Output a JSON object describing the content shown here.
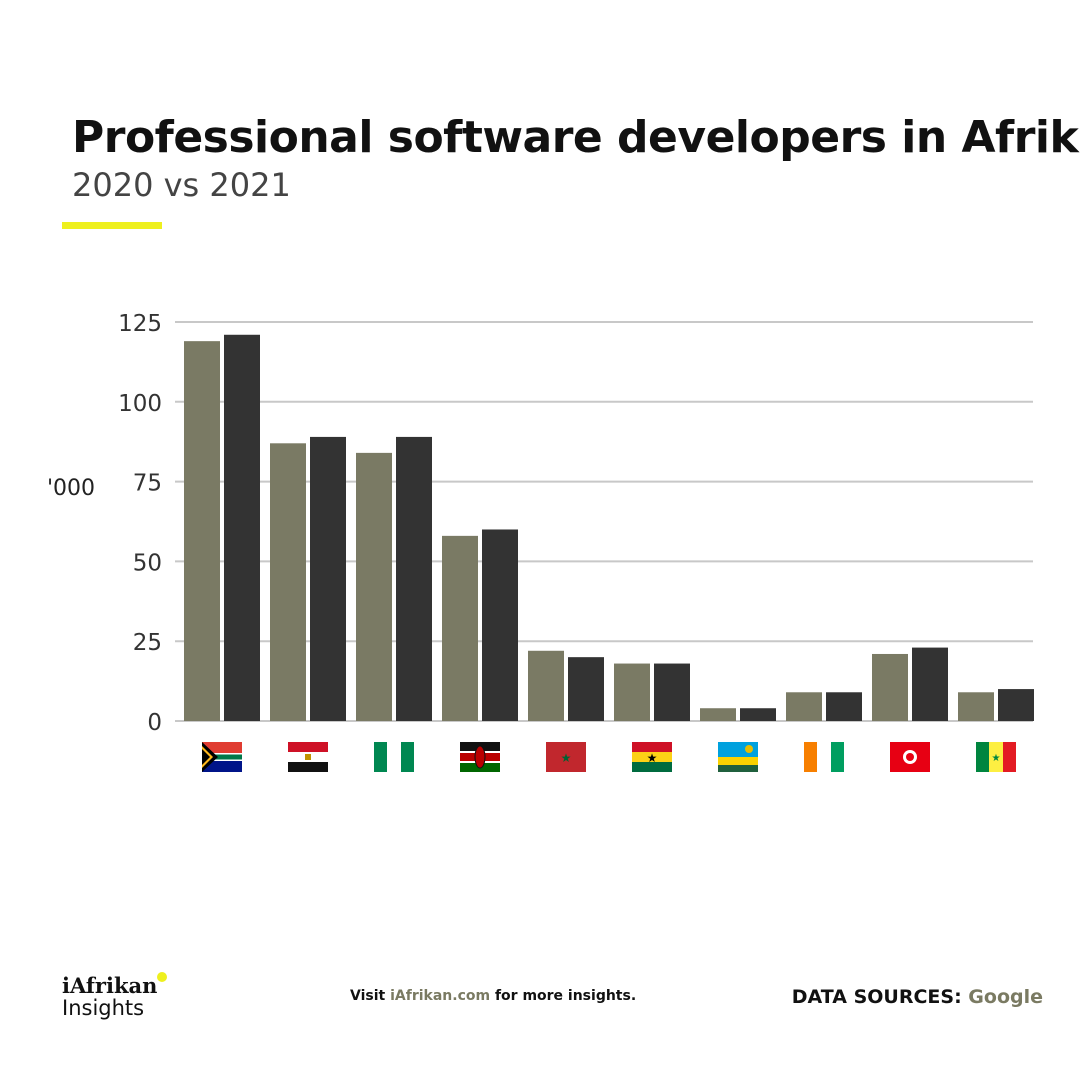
{
  "header": {
    "title": "Professional software developers in Afrika",
    "subtitle": "2020 vs 2021"
  },
  "footer": {
    "logo_line1": "iAfrikan",
    "logo_line2": "Insights",
    "visit_prefix": "Visit ",
    "visit_link": "iAfrikan.com",
    "visit_suffix": " for more insights.",
    "sources_label": "DATA SOURCES: ",
    "sources_value": "Google"
  },
  "colors": {
    "accent": "#eef01e",
    "series_2020": "#7a7a64",
    "series_2021": "#333333"
  },
  "chart_data": {
    "type": "bar",
    "title": "Professional software developers in Afrika",
    "subtitle": "2020 vs 2021",
    "ylabel": "'000",
    "ylim": [
      0,
      125
    ],
    "yticks": [
      0,
      25,
      50,
      75,
      100,
      125
    ],
    "grid": true,
    "categories": [
      "South Africa",
      "Egypt",
      "Nigeria",
      "Kenya",
      "Morocco",
      "Ghana",
      "Rwanda",
      "Côte d'Ivoire",
      "Tunisia",
      "Senegal"
    ],
    "category_icons": [
      "flag-south-africa",
      "flag-egypt",
      "flag-nigeria",
      "flag-kenya",
      "flag-morocco",
      "flag-ghana",
      "flag-rwanda",
      "flag-cote-divoire",
      "flag-tunisia",
      "flag-senegal"
    ],
    "series": [
      {
        "values": [
          119,
          87,
          84,
          58,
          22,
          18,
          4,
          9,
          21,
          9
        ],
        "color": "#7a7a64"
      },
      {
        "values": [
          121,
          89,
          89,
          60,
          20,
          18,
          4,
          9,
          23,
          10
        ],
        "color": "#333333"
      }
    ]
  }
}
